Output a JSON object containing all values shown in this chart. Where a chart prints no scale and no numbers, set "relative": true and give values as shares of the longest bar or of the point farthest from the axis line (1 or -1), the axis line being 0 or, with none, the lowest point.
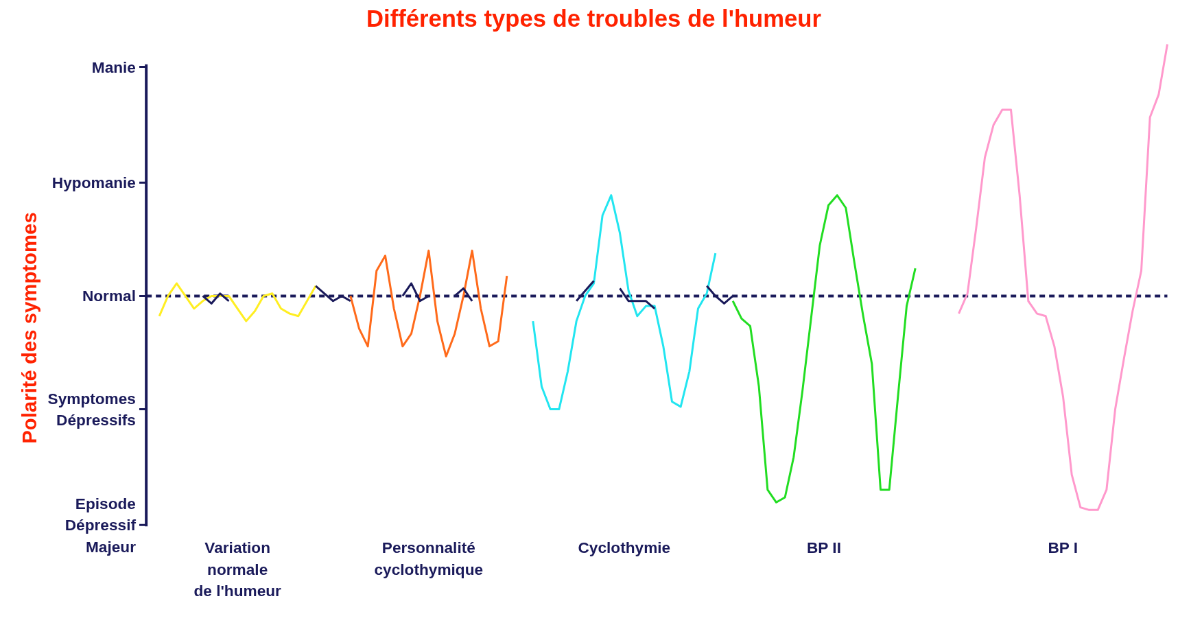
{
  "chart_data": {
    "type": "line",
    "title": "Différents types de troubles de l'humeur",
    "relative": true,
    "grid": false,
    "marker": "none",
    "line_style": "solid",
    "categories": [
      null,
      null,
      null,
      null,
      null,
      null,
      null,
      null,
      null,
      null,
      null,
      null,
      null,
      null,
      null,
      null,
      null,
      null,
      null,
      null,
      null,
      null,
      null,
      null,
      null,
      null,
      null,
      null,
      null,
      null,
      null,
      null,
      null,
      null,
      null,
      null,
      null,
      null,
      null,
      null,
      null,
      null,
      null,
      null,
      null,
      null,
      null,
      null,
      null,
      null,
      null,
      null,
      null,
      null,
      null,
      null,
      null,
      null,
      null,
      null,
      null,
      null,
      null,
      null,
      null,
      null,
      null,
      null,
      null,
      null,
      null,
      null,
      null,
      null,
      null,
      null,
      null,
      null,
      null,
      null,
      null,
      null,
      null,
      null,
      null,
      null,
      null,
      null,
      null,
      null,
      null,
      null,
      null,
      null,
      null,
      null,
      null,
      null,
      null,
      null,
      null,
      null,
      null,
      null,
      null,
      null,
      null,
      null,
      null,
      null,
      null,
      null,
      null,
      null,
      null,
      null,
      null
    ],
    "ref_lines": [
      {
        "axis": "y",
        "value": -0.91,
        "label": "Episode\nDépressif\nMajeur",
        "color": "#1a1a5a"
      },
      {
        "axis": "y",
        "value": -0.45,
        "label": "Symptomes\nDépressifs",
        "color": "#1a1a5a"
      },
      {
        "axis": "y",
        "value": 0,
        "label": "Normal",
        "color": "#1a1a5a",
        "line_style": "dashed"
      },
      {
        "axis": "y",
        "value": 0.45,
        "label": "Hypomanie",
        "color": "#1a1a5a"
      },
      {
        "axis": "y",
        "value": 0.91,
        "label": "Manie",
        "color": "#1a1a5a"
      }
    ],
    "annotations": [
      "Variation\nnormale\nde l'humeur",
      "Personnalité\ncyclothymique",
      "Cyclothymie",
      "BP II",
      "BP I",
      "Polarité des symptomes"
    ],
    "series": [
      {
        "color": "#ffee22",
        "values": [
          -0.08,
          0,
          0.05,
          0,
          -0.05,
          -0.02,
          0,
          0,
          0,
          -0.05,
          -0.1,
          -0.06,
          0,
          0.01,
          -0.05,
          -0.07,
          -0.08,
          -0.02,
          0.04,
          null,
          null,
          null,
          null,
          null,
          null,
          null,
          null,
          null,
          null,
          null,
          null,
          null,
          null,
          null,
          null,
          null,
          null,
          null,
          null,
          null,
          null,
          null,
          null,
          null,
          null,
          null,
          null,
          null,
          null,
          null,
          null,
          null,
          null,
          null,
          null,
          null,
          null,
          null,
          null,
          null,
          null,
          null,
          null,
          null,
          null,
          null,
          null,
          null,
          null,
          null,
          null,
          null,
          null,
          null,
          null,
          null,
          null,
          null,
          null,
          null,
          null,
          null,
          null,
          null,
          null,
          null,
          null,
          null,
          null,
          null,
          null,
          null,
          null,
          null,
          null,
          null,
          null,
          null,
          null,
          null,
          null,
          null,
          null,
          null,
          null,
          null,
          null,
          null,
          null,
          null,
          null,
          null,
          null,
          null,
          null,
          null,
          null
        ]
      },
      {
        "color": "#ff6a1a",
        "values": [
          null,
          null,
          null,
          null,
          null,
          null,
          null,
          null,
          null,
          null,
          null,
          null,
          null,
          null,
          null,
          null,
          null,
          null,
          null,
          null,
          null,
          null,
          0,
          -0.13,
          -0.2,
          0.1,
          0.16,
          -0.05,
          -0.2,
          -0.15,
          0,
          0.18,
          -0.1,
          -0.24,
          -0.15,
          0,
          0.18,
          -0.05,
          -0.2,
          -0.18,
          0.08,
          null,
          null,
          null,
          null,
          null,
          null,
          null,
          null,
          null,
          null,
          null,
          null,
          null,
          null,
          null,
          null,
          null,
          null,
          null,
          null,
          null,
          null,
          null,
          null,
          null,
          null,
          null,
          null,
          null,
          null,
          null,
          null,
          null,
          null,
          null,
          null,
          null,
          null,
          null,
          null,
          null,
          null,
          null,
          null,
          null,
          null,
          null,
          null,
          null,
          null,
          null,
          null,
          null,
          null,
          null,
          null,
          null,
          null,
          null,
          null,
          null,
          null,
          null,
          null,
          null,
          null,
          null,
          null,
          null,
          null,
          null,
          null,
          null,
          null,
          null,
          null
        ]
      },
      {
        "color": "#22e5f0",
        "values": [
          null,
          null,
          null,
          null,
          null,
          null,
          null,
          null,
          null,
          null,
          null,
          null,
          null,
          null,
          null,
          null,
          null,
          null,
          null,
          null,
          null,
          null,
          null,
          null,
          null,
          null,
          null,
          null,
          null,
          null,
          null,
          null,
          null,
          null,
          null,
          null,
          null,
          null,
          null,
          null,
          null,
          null,
          null,
          -0.1,
          -0.36,
          -0.45,
          -0.45,
          -0.3,
          -0.1,
          0,
          0.05,
          0.32,
          0.4,
          0.25,
          0.02,
          -0.08,
          -0.04,
          -0.04,
          -0.2,
          -0.42,
          -0.44,
          -0.3,
          -0.05,
          0.01,
          0.17,
          null,
          null,
          null,
          null,
          null,
          null,
          null,
          null,
          null,
          null,
          null,
          null,
          null,
          null,
          null,
          null,
          null,
          null,
          null,
          null,
          null,
          null,
          null,
          null,
          null,
          null,
          null,
          null,
          null,
          null,
          null,
          null,
          null,
          null,
          null,
          null,
          null,
          null,
          null,
          null,
          null,
          null,
          null,
          null,
          null,
          null,
          null,
          null,
          null,
          null,
          null,
          null
        ]
      },
      {
        "color": "#22dd22",
        "values": [
          null,
          null,
          null,
          null,
          null,
          null,
          null,
          null,
          null,
          null,
          null,
          null,
          null,
          null,
          null,
          null,
          null,
          null,
          null,
          null,
          null,
          null,
          null,
          null,
          null,
          null,
          null,
          null,
          null,
          null,
          null,
          null,
          null,
          null,
          null,
          null,
          null,
          null,
          null,
          null,
          null,
          null,
          null,
          null,
          null,
          null,
          null,
          null,
          null,
          null,
          null,
          null,
          null,
          null,
          null,
          null,
          null,
          null,
          null,
          null,
          null,
          null,
          null,
          null,
          null,
          null,
          -0.02,
          -0.09,
          -0.12,
          -0.36,
          -0.77,
          -0.82,
          -0.8,
          -0.64,
          -0.38,
          -0.09,
          0.2,
          0.36,
          0.4,
          0.35,
          0.13,
          -0.08,
          -0.27,
          -0.77,
          -0.77,
          -0.4,
          -0.04,
          0.11,
          null,
          null,
          null,
          null,
          null,
          null,
          null,
          null,
          null,
          null,
          null,
          null,
          null,
          null,
          null,
          null,
          null,
          null,
          null,
          null,
          null,
          null,
          null,
          null,
          null,
          null,
          null,
          null,
          null
        ]
      },
      {
        "color": "#ff99cc",
        "values": [
          null,
          null,
          null,
          null,
          null,
          null,
          null,
          null,
          null,
          null,
          null,
          null,
          null,
          null,
          null,
          null,
          null,
          null,
          null,
          null,
          null,
          null,
          null,
          null,
          null,
          null,
          null,
          null,
          null,
          null,
          null,
          null,
          null,
          null,
          null,
          null,
          null,
          null,
          null,
          null,
          null,
          null,
          null,
          null,
          null,
          null,
          null,
          null,
          null,
          null,
          null,
          null,
          null,
          null,
          null,
          null,
          null,
          null,
          null,
          null,
          null,
          null,
          null,
          null,
          null,
          null,
          null,
          null,
          null,
          null,
          null,
          null,
          null,
          null,
          null,
          null,
          null,
          null,
          null,
          null,
          null,
          null,
          null,
          null,
          null,
          null,
          null,
          null,
          null,
          null,
          null,
          null,
          -0.07,
          0.01,
          0.27,
          0.55,
          0.68,
          0.74,
          0.74,
          0.4,
          -0.02,
          -0.07,
          -0.08,
          -0.2,
          -0.4,
          -0.71,
          -0.84,
          -0.85,
          -0.85,
          -0.77,
          -0.45,
          -0.25,
          -0.06,
          0.1,
          0.71,
          0.8,
          1
        ]
      },
      {
        "color": "#1a1a5a",
        "values": [
          null,
          null,
          null,
          null,
          null,
          0,
          -0.03,
          0.01,
          -0.02,
          null,
          null,
          null,
          null,
          null,
          null,
          null,
          null,
          null,
          0.04,
          0.01,
          -0.02,
          0,
          -0.02,
          null,
          null,
          null,
          null,
          null,
          0,
          0.05,
          -0.02,
          0,
          null,
          null,
          0,
          0.03,
          -0.02,
          null,
          null,
          null,
          null,
          null,
          null,
          null,
          null,
          null,
          null,
          null,
          -0.02,
          0.02,
          0.06,
          null,
          null,
          0.03,
          -0.02,
          -0.02,
          -0.02,
          -0.05,
          null,
          null,
          null,
          null,
          null,
          0.04,
          0,
          -0.03,
          0,
          null,
          null,
          null,
          null,
          null,
          null,
          null,
          null,
          null,
          null,
          null,
          null,
          null,
          null,
          null,
          null,
          null,
          null,
          null,
          null,
          null,
          null,
          null,
          null,
          null,
          null,
          null,
          null,
          null,
          null,
          null,
          null,
          null,
          null,
          null,
          null,
          null,
          null,
          null,
          null,
          null,
          null,
          null,
          null,
          null,
          null,
          null,
          null,
          null,
          null
        ]
      }
    ]
  }
}
